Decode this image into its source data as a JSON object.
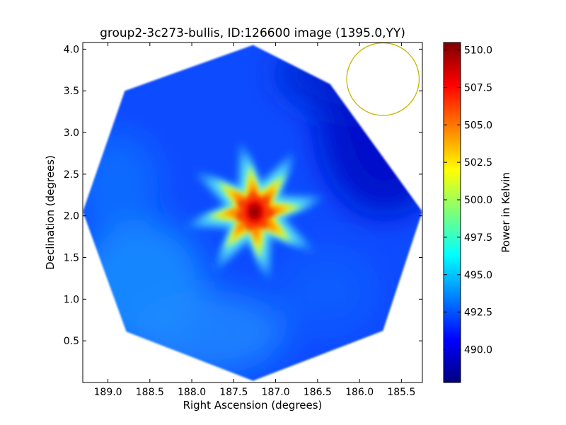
{
  "chart_data": {
    "type": "heatmap",
    "title": "group2-3c273-bullis, ID:126600 image (1395.0,YY)",
    "xlabel": "Right Ascension (degrees)",
    "ylabel": "Declination (degrees)",
    "xlim": [
      189.3,
      185.25
    ],
    "ylim": [
      0.0,
      4.08
    ],
    "x_ticks": [
      189.0,
      188.5,
      188.0,
      187.5,
      187.0,
      186.5,
      186.0,
      185.5
    ],
    "x_tick_labels": [
      "189.0",
      "188.5",
      "188.0",
      "187.5",
      "187.0",
      "186.5",
      "186.0",
      "185.5"
    ],
    "y_ticks": [
      0.5,
      1.0,
      1.5,
      2.0,
      2.5,
      3.0,
      3.5,
      4.0
    ],
    "y_tick_labels": [
      "0.5",
      "1.0",
      "1.5",
      "2.0",
      "2.5",
      "3.0",
      "3.5",
      "4.0"
    ],
    "colormap": "jet",
    "colorbar": {
      "label": "Power in Kelvin",
      "vmin": 487.8,
      "vmax": 510.5,
      "ticks": [
        490.0,
        492.5,
        495.0,
        497.5,
        500.0,
        502.5,
        505.0,
        507.5,
        510.0
      ],
      "tick_labels": [
        "490.0",
        "492.5",
        "495.0",
        "497.5",
        "500.0",
        "502.5",
        "505.0",
        "507.5",
        "510.0"
      ]
    },
    "field_footprint": {
      "shape": "octagon",
      "center_ra": 187.27,
      "center_dec": 2.05,
      "vertices": [
        [
          187.27,
          4.05
        ],
        [
          186.35,
          3.58
        ],
        [
          185.25,
          2.05
        ],
        [
          185.72,
          0.62
        ],
        [
          187.27,
          0.02
        ],
        [
          188.78,
          0.61
        ],
        [
          189.3,
          2.05
        ],
        [
          188.8,
          3.5
        ]
      ]
    },
    "background_level": 491.5,
    "peak": {
      "ra": 187.25,
      "dec": 2.05,
      "value": 509.5
    },
    "beam_marker": {
      "ra": 185.72,
      "dec": 3.64,
      "radius_deg": 0.36,
      "color": "#c8b400"
    }
  }
}
